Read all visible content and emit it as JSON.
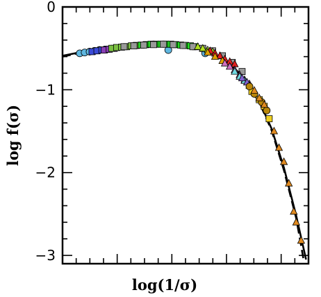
{
  "chart_data": {
    "type": "scatter",
    "xlabel": "log(1/σ)",
    "ylabel": "log f(σ)",
    "xlim": [
      0,
      1
    ],
    "ylim": [
      -3.1,
      0
    ],
    "x_tick_labels_shown": false,
    "y_ticks": [
      {
        "value": 0,
        "label": "0"
      },
      {
        "value": -1,
        "label": "−1"
      },
      {
        "value": -2,
        "label": "−2"
      },
      {
        "value": -3,
        "label": "−3"
      }
    ],
    "fit_curves": [
      {
        "style": "solid",
        "color": "#000000",
        "points": [
          [
            0.0,
            -0.59
          ],
          [
            0.1,
            -0.53
          ],
          [
            0.2,
            -0.49
          ],
          [
            0.3,
            -0.465
          ],
          [
            0.4,
            -0.455
          ],
          [
            0.5,
            -0.465
          ],
          [
            0.55,
            -0.49
          ],
          [
            0.6,
            -0.54
          ],
          [
            0.65,
            -0.62
          ],
          [
            0.7,
            -0.74
          ],
          [
            0.75,
            -0.91
          ],
          [
            0.8,
            -1.14
          ],
          [
            0.85,
            -1.47
          ],
          [
            0.9,
            -1.94
          ],
          [
            0.95,
            -2.52
          ],
          [
            0.99,
            -3.05
          ]
        ]
      },
      {
        "style": "dashed",
        "color": "#000000",
        "points": [
          [
            0.0,
            -0.6
          ],
          [
            0.1,
            -0.535
          ],
          [
            0.2,
            -0.495
          ],
          [
            0.3,
            -0.47
          ],
          [
            0.4,
            -0.46
          ],
          [
            0.5,
            -0.47
          ],
          [
            0.55,
            -0.495
          ],
          [
            0.6,
            -0.545
          ],
          [
            0.65,
            -0.625
          ],
          [
            0.7,
            -0.75
          ],
          [
            0.75,
            -0.92
          ],
          [
            0.8,
            -1.15
          ],
          [
            0.85,
            -1.49
          ],
          [
            0.9,
            -1.97
          ],
          [
            0.95,
            -2.55
          ],
          [
            0.98,
            -3.05
          ]
        ]
      }
    ],
    "series": [
      {
        "marker": "circle",
        "color": "#5fb7e0",
        "points": [
          [
            0.07,
            -0.56
          ],
          [
            0.09,
            -0.55
          ],
          [
            0.11,
            -0.54
          ],
          [
            0.13,
            -0.53
          ],
          [
            0.15,
            -0.52
          ],
          [
            0.43,
            -0.52
          ],
          [
            0.58,
            -0.56
          ]
        ]
      },
      {
        "marker": "square",
        "color": "#3b4bd8",
        "points": [
          [
            0.12,
            -0.54
          ],
          [
            0.14,
            -0.53
          ],
          [
            0.16,
            -0.52
          ],
          [
            0.18,
            -0.51
          ]
        ]
      },
      {
        "marker": "square",
        "color": "#8a3fb5",
        "points": [
          [
            0.17,
            -0.52
          ],
          [
            0.19,
            -0.51
          ],
          [
            0.21,
            -0.5
          ]
        ]
      },
      {
        "marker": "square",
        "color": "#7bc043",
        "points": [
          [
            0.2,
            -0.5
          ],
          [
            0.22,
            -0.49
          ],
          [
            0.24,
            -0.485
          ],
          [
            0.26,
            -0.48
          ],
          [
            0.28,
            -0.47
          ],
          [
            0.3,
            -0.465
          ]
        ]
      },
      {
        "marker": "square",
        "color": "#22dd22",
        "points": [
          [
            0.32,
            -0.46
          ],
          [
            0.34,
            -0.455
          ],
          [
            0.36,
            -0.45
          ],
          [
            0.38,
            -0.45
          ],
          [
            0.4,
            -0.45
          ],
          [
            0.42,
            -0.45
          ],
          [
            0.44,
            -0.45
          ],
          [
            0.46,
            -0.455
          ],
          [
            0.48,
            -0.46
          ],
          [
            0.5,
            -0.465
          ],
          [
            0.52,
            -0.47
          ],
          [
            0.54,
            -0.48
          ]
        ]
      },
      {
        "marker": "square",
        "color": "#999999",
        "points": [
          [
            0.25,
            -0.48
          ],
          [
            0.29,
            -0.47
          ],
          [
            0.33,
            -0.46
          ],
          [
            0.37,
            -0.455
          ],
          [
            0.41,
            -0.45
          ],
          [
            0.45,
            -0.455
          ],
          [
            0.49,
            -0.465
          ],
          [
            0.53,
            -0.48
          ],
          [
            0.57,
            -0.5
          ],
          [
            0.61,
            -0.53
          ],
          [
            0.65,
            -0.59
          ],
          [
            0.69,
            -0.67
          ],
          [
            0.73,
            -0.78
          ]
        ]
      },
      {
        "marker": "triangle",
        "color": "#b0e020",
        "points": [
          [
            0.55,
            -0.48
          ],
          [
            0.57,
            -0.5
          ],
          [
            0.59,
            -0.52
          ],
          [
            0.61,
            -0.54
          ]
        ]
      },
      {
        "marker": "triangle",
        "color": "#e02020",
        "points": [
          [
            0.6,
            -0.53
          ],
          [
            0.62,
            -0.56
          ],
          [
            0.64,
            -0.59
          ],
          [
            0.66,
            -0.63
          ],
          [
            0.68,
            -0.66
          ],
          [
            0.7,
            -0.69
          ]
        ]
      },
      {
        "marker": "triangle",
        "color": "#e0a000",
        "points": [
          [
            0.59,
            -0.55
          ],
          [
            0.62,
            -0.6
          ],
          [
            0.65,
            -0.65
          ]
        ]
      },
      {
        "marker": "triangle",
        "color": "#d070c0",
        "points": [
          [
            0.66,
            -0.68
          ],
          [
            0.68,
            -0.72
          ],
          [
            0.7,
            -0.76
          ],
          [
            0.72,
            -0.82
          ],
          [
            0.74,
            -0.88
          ],
          [
            0.76,
            -0.93
          ]
        ]
      },
      {
        "marker": "triangle",
        "color": "#70d8e0",
        "points": [
          [
            0.7,
            -0.78
          ],
          [
            0.72,
            -0.84
          ],
          [
            0.74,
            -0.89
          ],
          [
            0.76,
            -0.95
          ]
        ]
      },
      {
        "marker": "triangle",
        "color": "#8060d0",
        "points": [
          [
            0.73,
            -0.86
          ],
          [
            0.75,
            -0.91
          ]
        ]
      },
      {
        "marker": "square",
        "color": "#f0d020",
        "points": [
          [
            0.77,
            -1.02
          ],
          [
            0.8,
            -1.12
          ],
          [
            0.82,
            -1.2
          ],
          [
            0.84,
            -1.35
          ]
        ]
      },
      {
        "marker": "circle",
        "color": "#b8860b",
        "points": [
          [
            0.76,
            -0.96
          ],
          [
            0.78,
            -1.05
          ],
          [
            0.81,
            -1.15
          ],
          [
            0.83,
            -1.25
          ]
        ]
      },
      {
        "marker": "triangle",
        "color": "#e08a20",
        "points": [
          [
            0.78,
            -1.01
          ],
          [
            0.8,
            -1.1
          ],
          [
            0.82,
            -1.18
          ],
          [
            0.86,
            -1.5
          ],
          [
            0.88,
            -1.7
          ],
          [
            0.9,
            -1.87
          ],
          [
            0.92,
            -2.13
          ],
          [
            0.94,
            -2.47
          ],
          [
            0.95,
            -2.6
          ],
          [
            0.97,
            -2.82
          ]
        ]
      }
    ]
  }
}
